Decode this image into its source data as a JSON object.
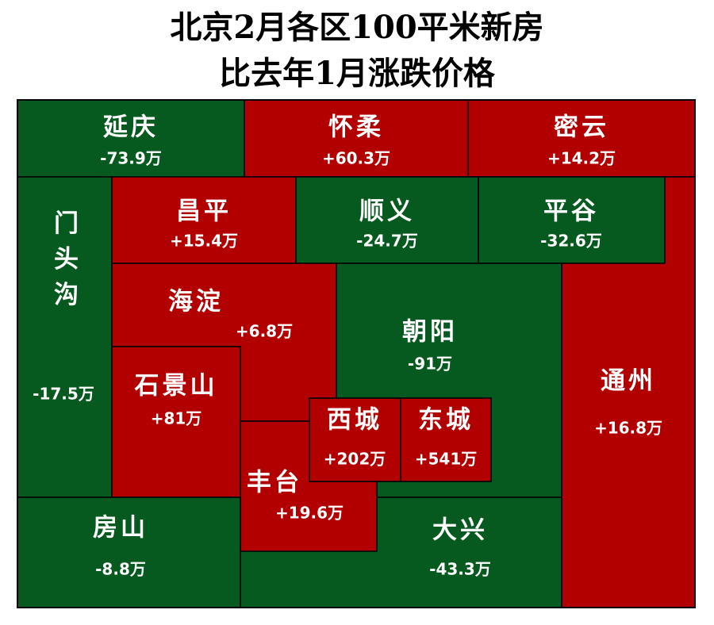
{
  "title": [
    "北京2月各区100平米新房",
    "比去年1月涨跌价格"
  ],
  "regions": [
    {
      "name": "延庆",
      "change": "-73.9万"
    },
    {
      "name": "怀柔",
      "change": "+60.3万"
    },
    {
      "name": "密云",
      "change": "+14.2万"
    },
    {
      "name": "门头沟",
      "change": "-17.5万"
    },
    {
      "name": "昌平",
      "change": "+15.4万"
    },
    {
      "name": "顺义",
      "change": "-24.7万"
    },
    {
      "name": "平谷",
      "change": "-32.6万"
    },
    {
      "name": "海淀",
      "change": "+6.8万"
    },
    {
      "name": "朝阳",
      "change": "-91万"
    },
    {
      "name": "石景山",
      "change": "+81万"
    },
    {
      "name": "西城",
      "change": "+202万"
    },
    {
      "name": "东城",
      "change": "+541万"
    },
    {
      "name": "丰台",
      "change": "+19.6万"
    },
    {
      "name": "通州",
      "change": "+16.8万"
    },
    {
      "name": "房山",
      "change": "-8.8万"
    },
    {
      "name": "大兴",
      "change": "-43.3万"
    }
  ]
}
